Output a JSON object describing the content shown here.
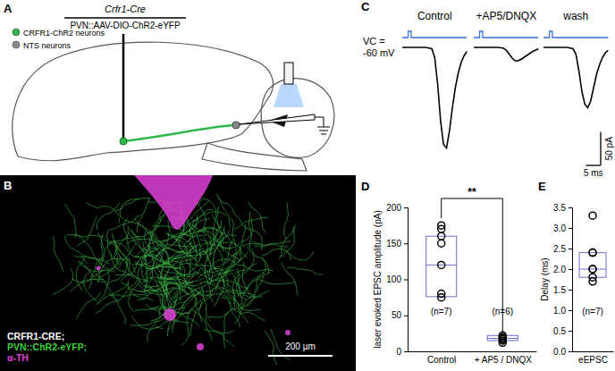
{
  "panel_labels": [
    "A",
    "B",
    "C",
    "D",
    "E"
  ],
  "schematic": {
    "genotype": "Crfr1-Cre",
    "injection": "PVN::AAV-DIO-ChR2-eYFP",
    "cell_types": [
      {
        "label": "CRFR1-ChR2 neurons",
        "color": "#2db84a"
      },
      {
        "label": "NTS neurons",
        "color": "#8a8a8a"
      }
    ]
  },
  "micrograph": {
    "lines": [
      {
        "text": "CRFR1-CRE;",
        "color": "#ffffff"
      },
      {
        "text": "PVN::ChR2-eYFP;",
        "color": "#3fcf3f"
      },
      {
        "text": "α-TH",
        "color": "#e040d8"
      }
    ],
    "scale_bar": "200 µm"
  },
  "chart_data": [
    {
      "type": "line",
      "x": [
        -2,
        0,
        2,
        4,
        6,
        8,
        9,
        10,
        11,
        12,
        13,
        14,
        15,
        16,
        17,
        18,
        19,
        20
      ],
      "series": [
        {
          "name": "Control",
          "color": "#000000",
          "values": [
            0,
            0,
            0,
            0,
            0,
            -2,
            -15,
            -55,
            -110,
            -145,
            -150,
            -125,
            -90,
            -60,
            -38,
            -22,
            -12,
            -6
          ]
        },
        {
          "name": "+AP5/DNQX",
          "color": "#000000",
          "values": [
            0,
            0,
            0,
            0,
            0,
            -1,
            -4,
            -10,
            -16,
            -20,
            -20,
            -18,
            -15,
            -12,
            -9,
            -6,
            -4,
            -2
          ]
        },
        {
          "name": "wash",
          "color": "#000000",
          "values": [
            0,
            0,
            0,
            0,
            0,
            -2,
            -10,
            -35,
            -65,
            -85,
            -90,
            -80,
            -60,
            -40,
            -26,
            -15,
            -8,
            -4
          ]
        }
      ],
      "xlim": [
        -2,
        20
      ],
      "ylim": [
        -160,
        20
      ],
      "tick_labels": false,
      "annotations": [
        "VC =",
        "-60 mV"
      ],
      "stimulus": {
        "start": 0,
        "end": 1,
        "color": "#3b6fd9"
      },
      "scale_bar": {
        "x": {
          "value": 5,
          "label": "5 ms"
        },
        "y": {
          "value": 50,
          "label": "50 pA"
        }
      }
    },
    {
      "type": "box",
      "categories": [
        "Control",
        "+ AP5 / DNQX"
      ],
      "ylabel": "laser evoked EPSC amplitude (pA)",
      "ylim": [
        0,
        200
      ],
      "yticks": [
        0,
        50,
        100,
        150,
        200
      ],
      "color": "#6a6ed0",
      "boxes": [
        {
          "q1": 76,
          "median": 120,
          "q3": 160
        },
        {
          "q1": 15,
          "median": 18,
          "q3": 22
        }
      ],
      "points": [
        [
          175,
          170,
          160,
          150,
          120,
          80,
          75
        ],
        [
          12,
          15,
          17,
          18,
          20,
          22
        ]
      ],
      "n_labels": [
        "(n=7)",
        "(n=6)"
      ],
      "significance": "**"
    },
    {
      "type": "box",
      "categories": [
        "eEPSC"
      ],
      "ylabel": "Delay (ms)",
      "ylim": [
        0,
        3.5
      ],
      "yticks": [
        {
          "value": 0,
          "label": "0.0"
        },
        {
          "value": 0.5,
          "label": "0.5"
        },
        {
          "value": 1,
          "label": "1.0"
        },
        {
          "value": 1.5,
          "label": "1.5"
        },
        {
          "value": 2,
          "label": "2.0"
        },
        {
          "value": 2.5,
          "label": "2.5"
        },
        {
          "value": 3,
          "label": "3.0"
        },
        {
          "value": 3.5,
          "label": "3.5"
        }
      ],
      "color": "#6a6ed0",
      "boxes": [
        {
          "q1": 1.8,
          "median": 2.0,
          "q3": 2.4
        }
      ],
      "points": [
        [
          3.3,
          2.4,
          2.4,
          2.0,
          2.0,
          1.8,
          1.7
        ]
      ],
      "n_labels": [
        "(n=7)"
      ]
    }
  ]
}
